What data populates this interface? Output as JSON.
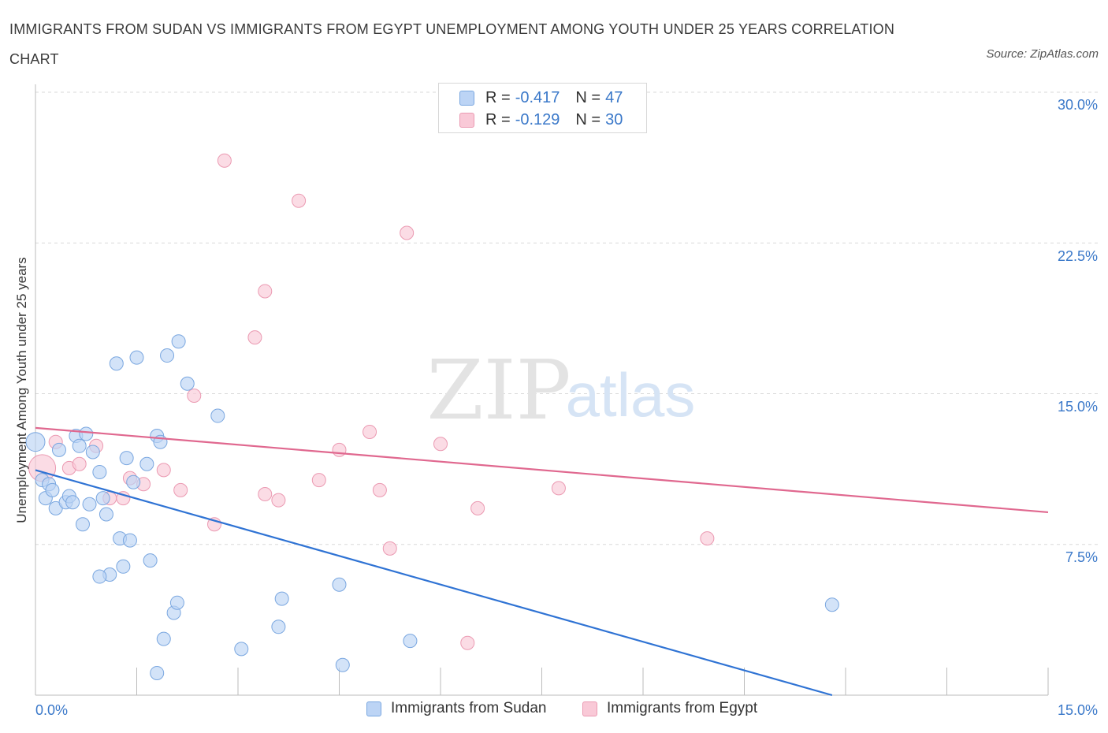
{
  "title": "IMMIGRANTS FROM SUDAN VS IMMIGRANTS FROM EGYPT UNEMPLOYMENT AMONG YOUTH UNDER 25 YEARS CORRELATION CHART",
  "source": "Source: ZipAtlas.com",
  "watermark": {
    "zip": "ZIP",
    "atlas": "atlas"
  },
  "legend": {
    "r_label": "R =",
    "n_label": "N =",
    "rows": [
      {
        "r": "-0.417",
        "n": "47",
        "swatch_fill": "#bcd4f5",
        "swatch_stroke": "#7aa7e0"
      },
      {
        "r": "-0.129",
        "n": "30",
        "swatch_fill": "#f9c9d7",
        "swatch_stroke": "#eb9ab2"
      }
    ]
  },
  "bottom_legend": [
    "Immigrants from Sudan",
    "Immigrants from Egypt"
  ],
  "colors": {
    "sudan_line": "#2f73d4",
    "egypt_line": "#e0688f",
    "sudan_point": "#bcd4f5",
    "egypt_point": "#f9c9d7",
    "tick": "#3a78c9",
    "grid": "#d9d9d9"
  },
  "chart_data": {
    "type": "scatter",
    "ylabel": "Unemployment Among Youth under 25 years",
    "xlim": [
      0,
      15
    ],
    "ylim": [
      0,
      30
    ],
    "x_tick_labels": [
      "0.0%",
      "15.0%"
    ],
    "y_tick_labels": [
      "7.5%",
      "15.0%",
      "22.5%",
      "30.0%"
    ],
    "y_ticks": [
      7.5,
      15,
      22.5,
      30
    ],
    "grid": true,
    "series": [
      {
        "name": "Immigrants from Sudan",
        "points": [
          [
            0.0,
            12.6
          ],
          [
            0.1,
            10.7
          ],
          [
            0.2,
            10.5
          ],
          [
            0.15,
            9.8
          ],
          [
            0.3,
            9.3
          ],
          [
            0.25,
            10.2
          ],
          [
            0.35,
            12.2
          ],
          [
            0.45,
            9.6
          ],
          [
            0.5,
            9.9
          ],
          [
            0.55,
            9.6
          ],
          [
            0.6,
            12.9
          ],
          [
            0.65,
            12.4
          ],
          [
            0.7,
            8.5
          ],
          [
            0.75,
            13.0
          ],
          [
            0.8,
            9.5
          ],
          [
            0.85,
            12.1
          ],
          [
            0.95,
            11.1
          ],
          [
            1.0,
            9.8
          ],
          [
            1.1,
            6.0
          ],
          [
            1.2,
            16.5
          ],
          [
            1.25,
            7.8
          ],
          [
            1.3,
            6.4
          ],
          [
            1.35,
            11.8
          ],
          [
            1.4,
            7.7
          ],
          [
            1.45,
            10.6
          ],
          [
            1.5,
            16.8
          ],
          [
            1.65,
            11.5
          ],
          [
            1.7,
            6.7
          ],
          [
            1.8,
            12.9
          ],
          [
            1.85,
            12.6
          ],
          [
            1.9,
            2.8
          ],
          [
            1.95,
            16.9
          ],
          [
            2.05,
            4.1
          ],
          [
            2.1,
            4.6
          ],
          [
            2.12,
            17.6
          ],
          [
            2.25,
            15.5
          ],
          [
            2.7,
            13.9
          ],
          [
            3.05,
            2.3
          ],
          [
            3.6,
            3.4
          ],
          [
            3.65,
            4.8
          ],
          [
            4.5,
            5.5
          ],
          [
            4.55,
            1.5
          ],
          [
            5.55,
            2.7
          ],
          [
            11.8,
            4.5
          ],
          [
            1.05,
            9.0
          ],
          [
            0.95,
            5.9
          ],
          [
            1.8,
            1.1
          ]
        ],
        "trend": {
          "x": [
            0.0,
            11.8
          ],
          "y": [
            11.2,
            0.0
          ]
        }
      },
      {
        "name": "Immigrants from Egypt",
        "points": [
          [
            0.1,
            11.3
          ],
          [
            0.3,
            12.6
          ],
          [
            0.5,
            11.3
          ],
          [
            0.65,
            11.5
          ],
          [
            0.9,
            12.4
          ],
          [
            1.1,
            9.8
          ],
          [
            1.3,
            9.8
          ],
          [
            1.4,
            10.8
          ],
          [
            1.6,
            10.5
          ],
          [
            1.9,
            11.2
          ],
          [
            2.15,
            10.2
          ],
          [
            2.35,
            14.9
          ],
          [
            2.65,
            8.5
          ],
          [
            2.8,
            26.6
          ],
          [
            3.25,
            17.8
          ],
          [
            3.4,
            20.1
          ],
          [
            3.4,
            10.0
          ],
          [
            3.6,
            9.7
          ],
          [
            3.9,
            24.6
          ],
          [
            4.2,
            10.7
          ],
          [
            4.5,
            12.2
          ],
          [
            4.95,
            13.1
          ],
          [
            5.1,
            10.2
          ],
          [
            5.25,
            7.3
          ],
          [
            5.5,
            23.0
          ],
          [
            6.0,
            12.5
          ],
          [
            6.4,
            2.6
          ],
          [
            6.55,
            9.3
          ],
          [
            7.75,
            10.3
          ],
          [
            9.95,
            7.8
          ]
        ],
        "trend": {
          "x": [
            0.0,
            15.0
          ],
          "y": [
            13.3,
            9.1
          ]
        }
      }
    ]
  }
}
